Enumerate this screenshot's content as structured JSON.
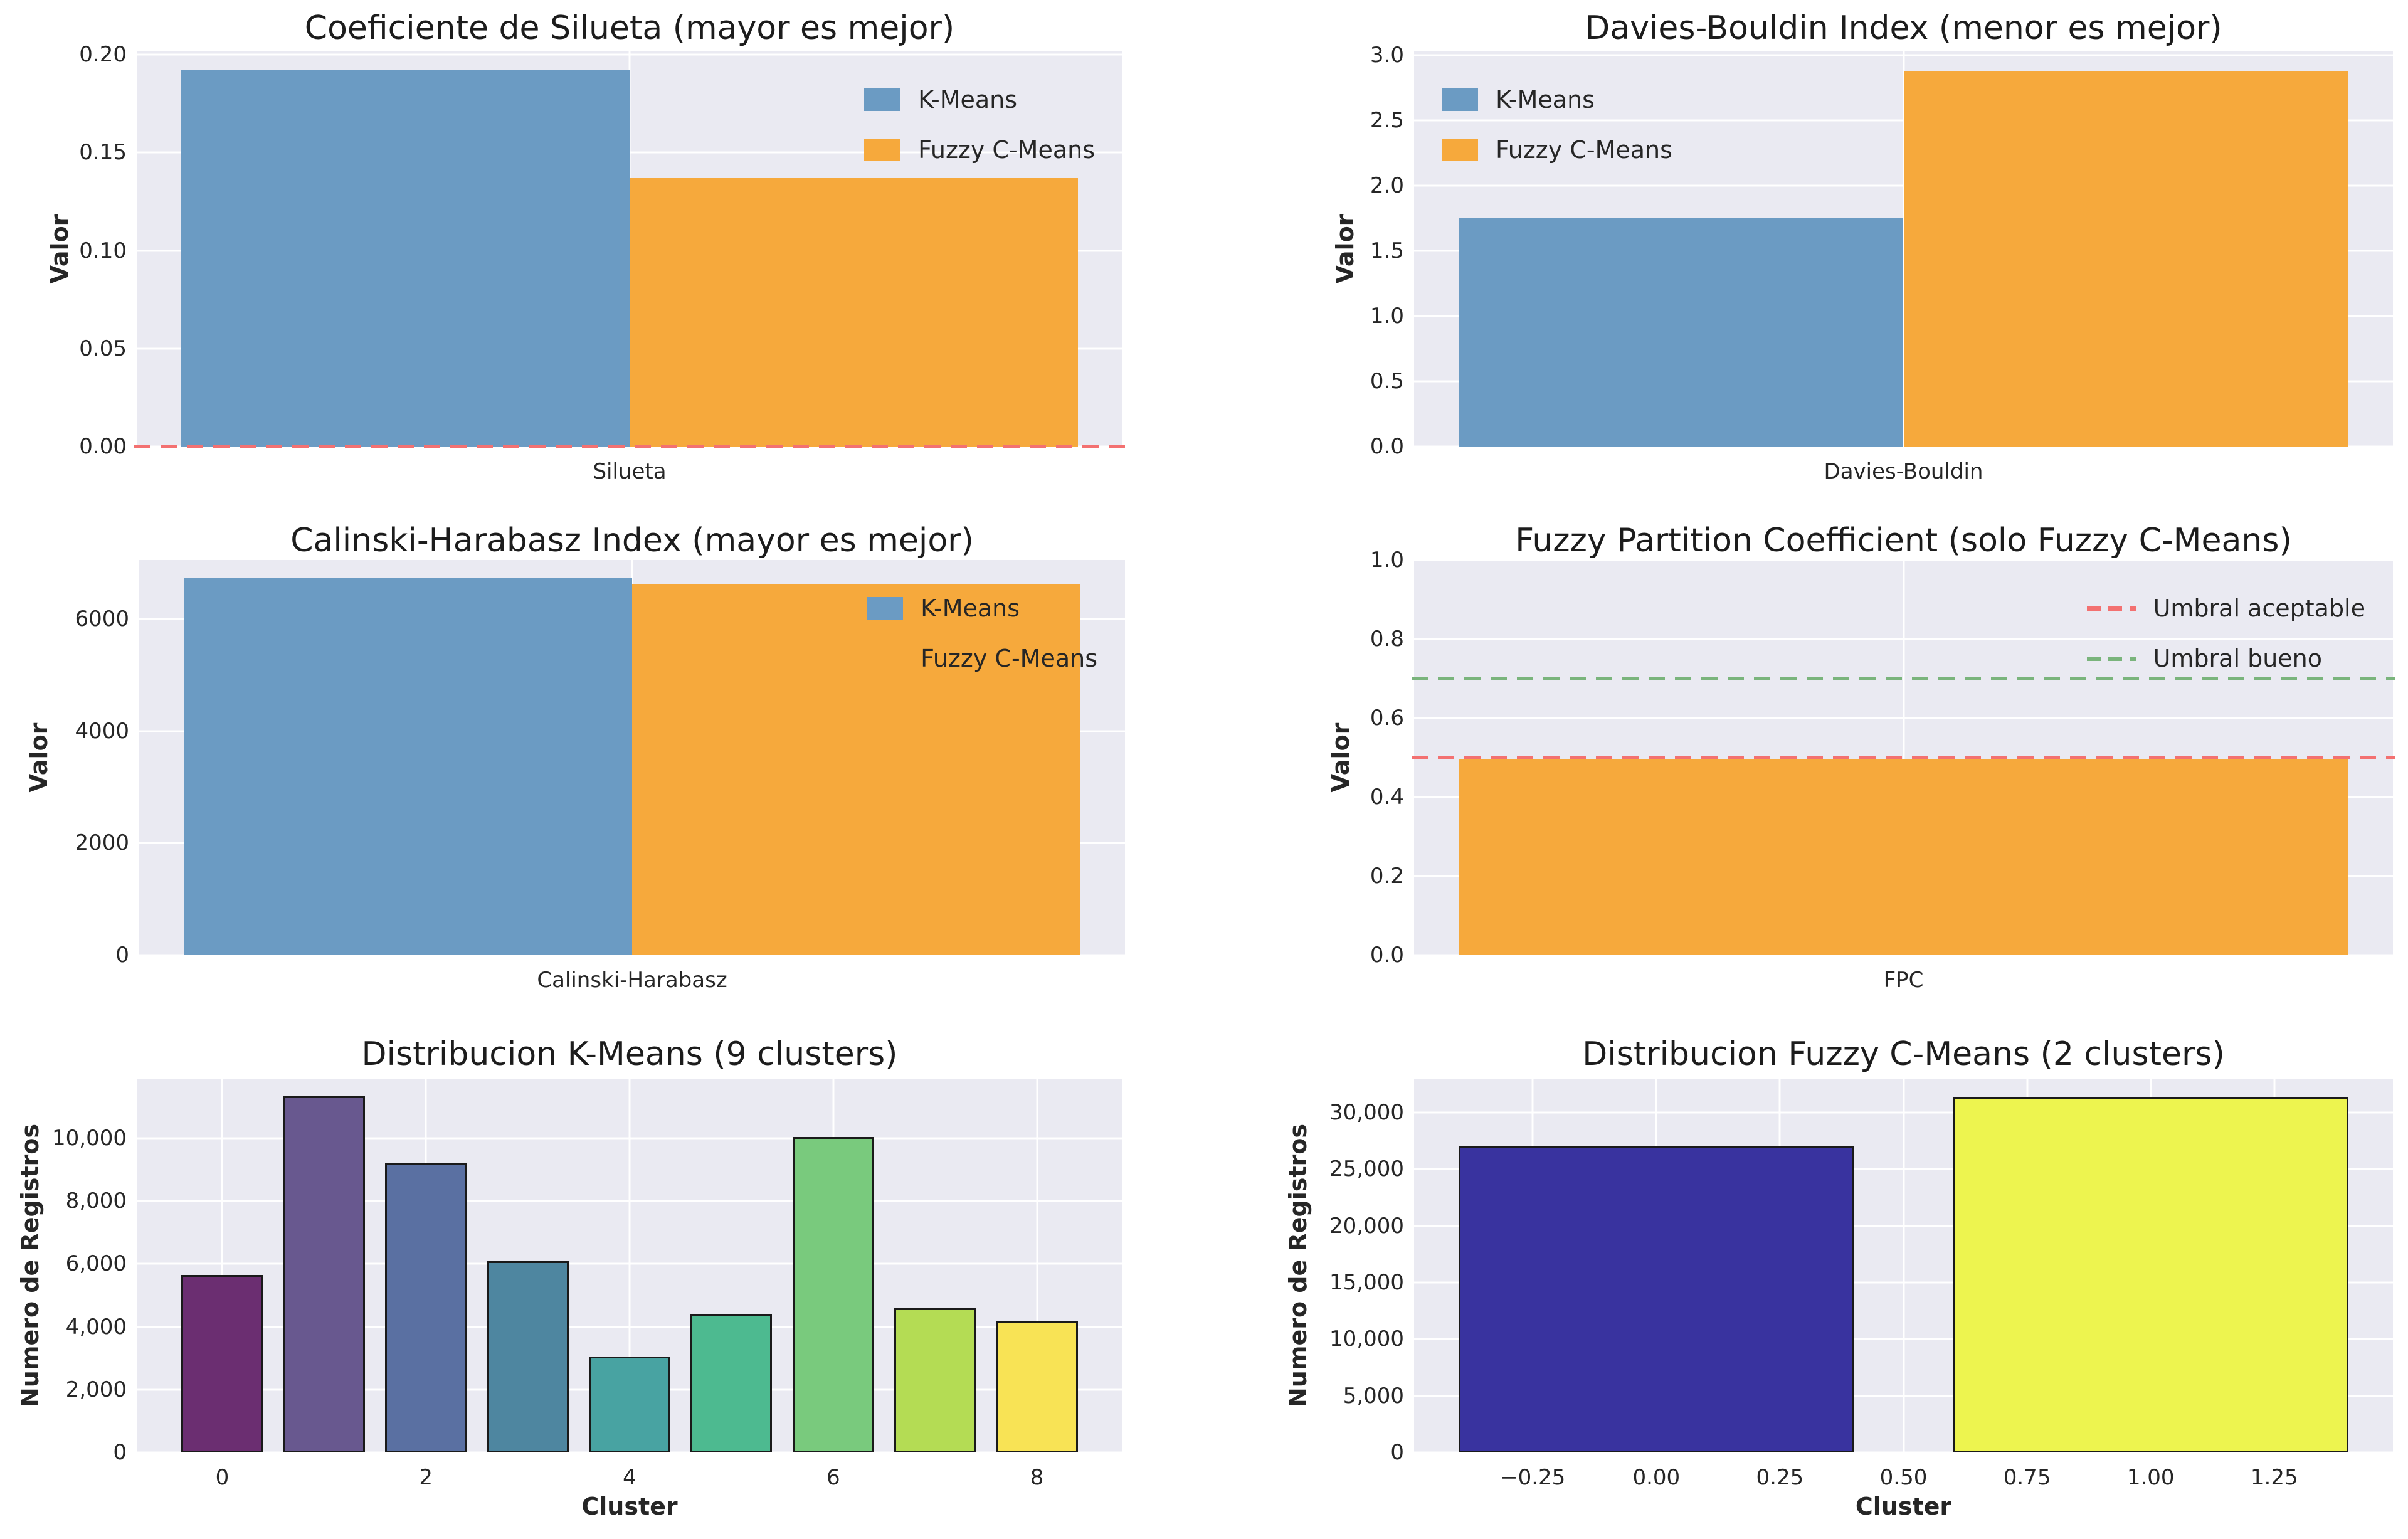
{
  "figure": {
    "background": "#ffffff",
    "axes_background": "#eaeaf2",
    "grid_color": "#ffffff",
    "text_color": "#262626"
  },
  "palette": {
    "kmeans_blue": "#6b9bc3",
    "fcm_orange": "#f6a93c",
    "threshold_red": "#f37171",
    "threshold_green": "#7ab47c",
    "bar_edge_black": "#1a1a1a"
  },
  "chart_data": [
    {
      "type": "bar",
      "title": "Coeficiente de Silueta (mayor es mejor)",
      "ylabel": "Valor",
      "xlabel": "",
      "ylim": [
        0,
        0.2016
      ],
      "yticks": {
        "values": [
          0,
          0.05,
          0.1,
          0.15,
          0.2
        ],
        "labels": [
          "0.00",
          "0.05",
          "0.10",
          "0.15",
          "0.20"
        ]
      },
      "xlim": [
        -0.44,
        0.44
      ],
      "xticks": {
        "values": [
          0
        ],
        "labels": [
          "Silueta"
        ]
      },
      "bars": [
        {
          "label": "K-Means",
          "x": -0.2,
          "width": 0.4,
          "value": 0.192,
          "color": "#6b9bc3"
        },
        {
          "label": "Fuzzy C-Means",
          "x": 0.2,
          "width": 0.4,
          "value": 0.137,
          "color": "#f6a93c"
        }
      ],
      "bar_edge": null,
      "hlines": [
        {
          "y": 0,
          "color": "#f37171"
        }
      ],
      "legend": {
        "position": "upper right",
        "items": [
          {
            "marker": "patch",
            "color": "#6b9bc3",
            "label": "K-Means"
          },
          {
            "marker": "patch",
            "color": "#f6a93c",
            "label": "Fuzzy C-Means"
          }
        ]
      }
    },
    {
      "type": "bar",
      "title": "Davies-Bouldin Index (menor es mejor)",
      "ylabel": "Valor",
      "xlabel": "",
      "ylim": [
        0,
        3.03
      ],
      "yticks": {
        "values": [
          0,
          0.5,
          1.0,
          1.5,
          2.0,
          2.5,
          3.0
        ],
        "labels": [
          "0.0",
          "0.5",
          "1.0",
          "1.5",
          "2.0",
          "2.5",
          "3.0"
        ]
      },
      "xlim": [
        -0.44,
        0.44
      ],
      "xticks": {
        "values": [
          0
        ],
        "labels": [
          "Davies-Bouldin"
        ]
      },
      "bars": [
        {
          "label": "K-Means",
          "x": -0.2,
          "width": 0.4,
          "value": 1.75,
          "color": "#6b9bc3"
        },
        {
          "label": "Fuzzy C-Means",
          "x": 0.2,
          "width": 0.4,
          "value": 2.88,
          "color": "#f6a93c"
        }
      ],
      "bar_edge": null,
      "hlines": [],
      "legend": {
        "position": "upper left",
        "items": [
          {
            "marker": "patch",
            "color": "#6b9bc3",
            "label": "K-Means"
          },
          {
            "marker": "patch",
            "color": "#f6a93c",
            "label": "Fuzzy C-Means"
          }
        ]
      }
    },
    {
      "type": "bar",
      "title": "Calinski-Harabasz Index (mayor es mejor)",
      "ylabel": "Valor",
      "xlabel": "",
      "ylim": [
        0,
        7050
      ],
      "yticks": {
        "values": [
          0,
          2000,
          4000,
          6000
        ],
        "labels": [
          "0",
          "2000",
          "4000",
          "6000"
        ]
      },
      "xlim": [
        -0.44,
        0.44
      ],
      "xticks": {
        "values": [
          0
        ],
        "labels": [
          "Calinski-Harabasz"
        ]
      },
      "bars": [
        {
          "label": "K-Means",
          "x": -0.2,
          "width": 0.4,
          "value": 6730,
          "color": "#6b9bc3"
        },
        {
          "label": "Fuzzy C-Means",
          "x": 0.2,
          "width": 0.4,
          "value": 6620,
          "color": "#f6a93c"
        }
      ],
      "bar_edge": null,
      "hlines": [],
      "legend": {
        "position": "upper right",
        "items": [
          {
            "marker": "patch",
            "color": "#6b9bc3",
            "label": "K-Means"
          },
          {
            "marker": "patch",
            "color": "#f6a93c",
            "label": "Fuzzy C-Means"
          }
        ]
      }
    },
    {
      "type": "bar",
      "title": "Fuzzy Partition Coefficient (solo Fuzzy C-Means)",
      "ylabel": "Valor",
      "xlabel": "",
      "ylim": [
        0,
        1.0
      ],
      "yticks": {
        "values": [
          0,
          0.2,
          0.4,
          0.6,
          0.8,
          1.0
        ],
        "labels": [
          "0.0",
          "0.2",
          "0.4",
          "0.6",
          "0.8",
          "1.0"
        ]
      },
      "xlim": [
        -0.44,
        0.44
      ],
      "xticks": {
        "values": [
          0
        ],
        "labels": [
          "FPC"
        ]
      },
      "bars": [
        {
          "label": "FPC",
          "x": 0,
          "width": 0.8,
          "value": 0.497,
          "color": "#f6a93c"
        }
      ],
      "bar_edge": null,
      "hlines": [
        {
          "y": 0.5,
          "color": "#f37171",
          "label": "Umbral aceptable"
        },
        {
          "y": 0.7,
          "color": "#7ab47c",
          "label": "Umbral bueno"
        }
      ],
      "legend": {
        "position": "upper right",
        "items": [
          {
            "marker": "line",
            "color": "#f37171",
            "label": "Umbral aceptable"
          },
          {
            "marker": "line",
            "color": "#7ab47c",
            "label": "Umbral bueno"
          }
        ]
      }
    },
    {
      "type": "bar",
      "title": "Distribucion K-Means (9 clusters)",
      "ylabel": "Numero de Registros",
      "xlabel": "Cluster",
      "ylim": [
        0,
        11900
      ],
      "yticks": {
        "values": [
          0,
          2000,
          4000,
          6000,
          8000,
          10000
        ],
        "labels": [
          "0",
          "2,000",
          "4,000",
          "6,000",
          "8,000",
          "10,000"
        ]
      },
      "xlim": [
        -0.84,
        8.84
      ],
      "xticks": {
        "values": [
          0,
          2,
          4,
          6,
          8
        ],
        "labels": [
          "0",
          "2",
          "4",
          "6",
          "8"
        ]
      },
      "bars": [
        {
          "label": "cluster-0",
          "x": 0,
          "width": 0.8,
          "value": 5650,
          "color": "#6b2e71"
        },
        {
          "label": "cluster-1",
          "x": 1,
          "width": 0.8,
          "value": 11350,
          "color": "#68588f"
        },
        {
          "label": "cluster-2",
          "x": 2,
          "width": 0.8,
          "value": 9200,
          "color": "#5a70a2"
        },
        {
          "label": "cluster-3",
          "x": 3,
          "width": 0.8,
          "value": 6100,
          "color": "#4e86a0"
        },
        {
          "label": "cluster-4",
          "x": 4,
          "width": 0.8,
          "value": 3050,
          "color": "#48a3a2"
        },
        {
          "label": "cluster-5",
          "x": 5,
          "width": 0.8,
          "value": 4400,
          "color": "#4dba90"
        },
        {
          "label": "cluster-6",
          "x": 6,
          "width": 0.8,
          "value": 10050,
          "color": "#79ca7d"
        },
        {
          "label": "cluster-7",
          "x": 7,
          "width": 0.8,
          "value": 4600,
          "color": "#b4dc54"
        },
        {
          "label": "cluster-8",
          "x": 8,
          "width": 0.8,
          "value": 4200,
          "color": "#f8e355"
        }
      ],
      "bar_edge": "#1a1a1a",
      "hlines": [],
      "legend": null
    },
    {
      "type": "bar",
      "title": "Distribucion Fuzzy C-Means (2 clusters)",
      "ylabel": "Numero de Registros",
      "xlabel": "Cluster",
      "ylim": [
        0,
        33000
      ],
      "yticks": {
        "values": [
          0,
          5000,
          10000,
          15000,
          20000,
          25000,
          30000
        ],
        "labels": [
          "0",
          "5,000",
          "10,000",
          "15,000",
          "20,000",
          "25,000",
          "30,000"
        ]
      },
      "xlim": [
        -0.49,
        1.49
      ],
      "xticks": {
        "values": [
          -0.25,
          0,
          0.25,
          0.5,
          0.75,
          1.0,
          1.25
        ],
        "labels": [
          "−0.25",
          "0.00",
          "0.25",
          "0.50",
          "0.75",
          "1.00",
          "1.25"
        ]
      },
      "bars": [
        {
          "label": "cluster-0",
          "x": 0,
          "width": 0.8,
          "value": 27100,
          "color": "#39339f"
        },
        {
          "label": "cluster-1",
          "x": 1,
          "width": 0.8,
          "value": 31400,
          "color": "#edf44f"
        }
      ],
      "bar_edge": "#1a1a1a",
      "hlines": [],
      "legend": null
    }
  ]
}
